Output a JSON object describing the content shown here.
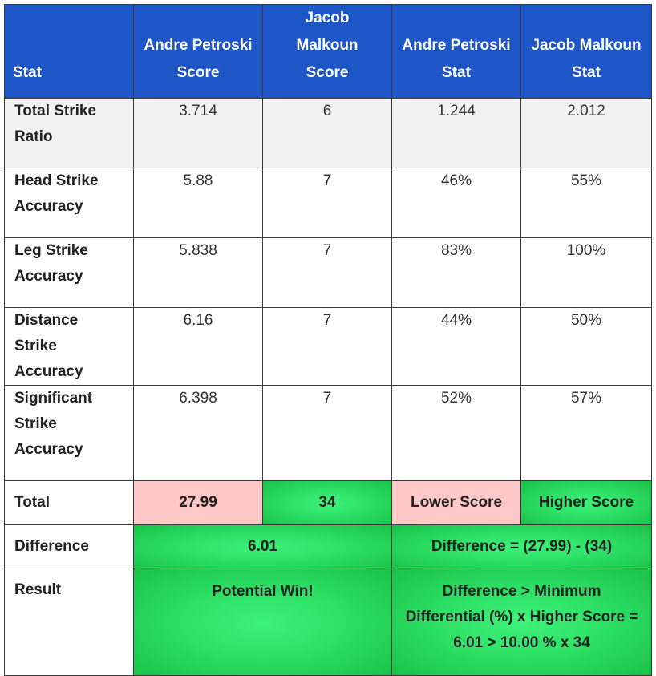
{
  "headers": {
    "stat": "Stat",
    "a_score_1": "Andre Petroski",
    "a_score_2": "Score",
    "b_score_1": "Jacob Malkoun",
    "b_score_2": "Score",
    "a_stat_1": "Andre Petroski",
    "a_stat_2": "Stat",
    "b_stat_1": "Jacob Malkoun",
    "b_stat_2": "Stat"
  },
  "rows": [
    {
      "stat": "Total Strike Ratio",
      "a_score": "3.714",
      "b_score": "6",
      "a_stat": "1.244",
      "b_stat": "2.012"
    },
    {
      "stat": "Head Strike Accuracy",
      "a_score": "5.88",
      "b_score": "7",
      "a_stat": "46%",
      "b_stat": "55%"
    },
    {
      "stat": "Leg Strike Accuracy",
      "a_score": "5.838",
      "b_score": "7",
      "a_stat": "83%",
      "b_stat": "100%"
    },
    {
      "stat": "Distance Strike Accuracy",
      "a_score": "6.16",
      "b_score": "7",
      "a_stat": "44%",
      "b_stat": "50%"
    },
    {
      "stat": "Significant Strike Accuracy",
      "a_score": "6.398",
      "b_score": "7",
      "a_stat": "52%",
      "b_stat": "57%"
    }
  ],
  "total": {
    "label": "Total",
    "a_score": "27.99",
    "b_score": "34",
    "a_note": "Lower Score",
    "b_note": "Higher Score"
  },
  "difference": {
    "label": "Difference",
    "value": "6.01",
    "formula": "Difference = (27.99) - (34)"
  },
  "result": {
    "label": "Result",
    "value": "Potential Win!",
    "formula": "Difference > Minimum Differential (%) x Higher Score = 6.01 > 10.00 % x 34"
  },
  "colors": {
    "header_bg": "#1f56c7",
    "lower_bg": "#ffc8c8",
    "higher_bg": "#2ee066"
  }
}
